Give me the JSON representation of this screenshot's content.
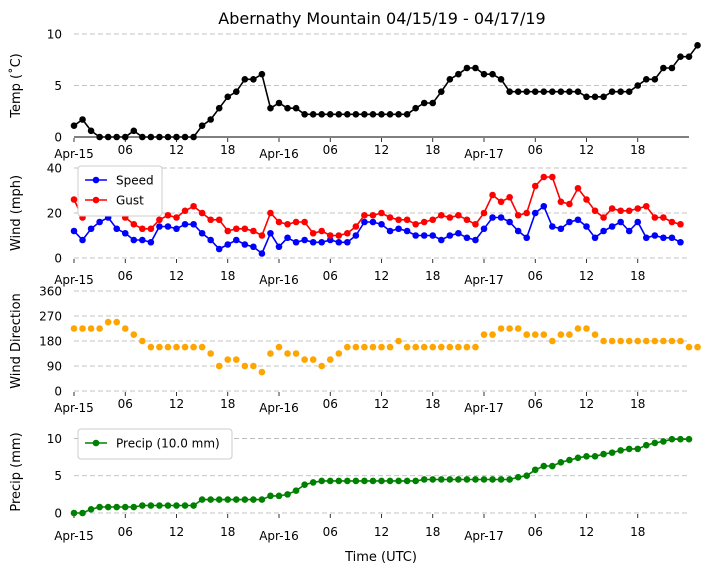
{
  "title": "Abernathy Mountain 04/15/19 - 04/17/19",
  "xlabel": "Time (UTC)",
  "x_ticks": [
    "Apr-15",
    "06",
    "12",
    "18",
    "Apr-16",
    "06",
    "12",
    "18",
    "Apr-17",
    "06",
    "12",
    "18"
  ],
  "colors": {
    "temp": "#000000",
    "speed": "#0000ff",
    "gust": "#ff0000",
    "dir": "#ffa500",
    "precip": "#008000",
    "grid": "#b0b0b0"
  },
  "chart_data": [
    {
      "type": "line",
      "ylabel": "Temp (˚C)",
      "ylim": [
        0,
        10
      ],
      "yticks": [
        0,
        5,
        10
      ],
      "grid": "horizontal dashed",
      "series": [
        {
          "values": [
            1.1,
            1.7,
            0.6,
            0,
            0,
            0,
            0,
            0.6,
            0,
            0,
            0,
            0,
            0,
            0,
            0,
            1.1,
            1.7,
            2.8,
            3.9,
            4.4,
            5.6,
            5.6,
            6.1,
            2.8,
            3.3,
            2.8,
            2.8,
            2.2,
            2.2,
            2.2,
            2.2,
            2.2,
            2.2,
            2.2,
            2.2,
            2.2,
            2.2,
            2.2,
            2.2,
            2.2,
            2.8,
            3.3,
            3.3,
            4.4,
            5.6,
            6.1,
            6.7,
            6.7,
            6.1,
            6.1,
            5.6,
            4.4,
            4.4,
            4.4,
            4.4,
            4.4,
            4.4,
            4.4,
            4.4,
            4.4,
            3.9,
            3.9,
            3.9,
            4.4,
            4.4,
            4.4,
            5,
            5.6,
            5.6,
            6.7,
            6.7,
            7.8,
            7.8,
            8.9
          ]
        }
      ]
    },
    {
      "type": "line",
      "ylabel": "Wind (mph)",
      "ylim": [
        0,
        40
      ],
      "yticks": [
        0,
        20,
        40
      ],
      "legend": "top-left",
      "series": [
        {
          "name": "Speed",
          "values": [
            12,
            8,
            13,
            16,
            18,
            13,
            11,
            8,
            8,
            7,
            14,
            14,
            13,
            15,
            15,
            11,
            8,
            4,
            6,
            8,
            6,
            5,
            2,
            11,
            5,
            9,
            7,
            8,
            7,
            7,
            8,
            7,
            7,
            10,
            16,
            16,
            15,
            12,
            13,
            12,
            10,
            10,
            10,
            8,
            10,
            11,
            9,
            8,
            13,
            18,
            18,
            16,
            12,
            9,
            20,
            23,
            14,
            13,
            16,
            17,
            14,
            9,
            12,
            14,
            16,
            12,
            16,
            9,
            10,
            9,
            9,
            7
          ]
        },
        {
          "name": "Gust",
          "values": [
            26,
            18,
            23,
            22,
            24,
            23,
            18,
            15,
            13,
            13,
            17,
            19,
            18,
            21,
            23,
            20,
            17,
            17,
            12,
            13,
            13,
            12,
            10,
            20,
            16,
            15,
            16,
            16,
            11,
            12,
            10,
            10,
            11,
            14,
            19,
            19,
            20,
            18,
            17,
            17,
            15,
            16,
            17,
            19,
            18,
            19,
            17,
            15,
            20,
            28,
            25,
            27,
            19,
            20,
            32,
            36,
            36,
            25,
            24,
            31,
            26,
            21,
            18,
            22,
            21,
            21,
            22,
            23,
            18,
            18,
            16,
            15
          ]
        }
      ]
    },
    {
      "type": "scatter",
      "ylabel": "Wind Direction",
      "ylim": [
        0,
        360
      ],
      "yticks": [
        0,
        90,
        180,
        270,
        360
      ],
      "series": [
        {
          "values": [
            225,
            225,
            225,
            225,
            248,
            248,
            225,
            203,
            180,
            158,
            158,
            158,
            158,
            158,
            158,
            158,
            135,
            90,
            113,
            113,
            90,
            90,
            68,
            135,
            158,
            135,
            135,
            113,
            113,
            90,
            113,
            135,
            158,
            158,
            158,
            158,
            158,
            158,
            180,
            158,
            158,
            158,
            158,
            158,
            158,
            158,
            158,
            158,
            203,
            203,
            225,
            225,
            225,
            203,
            203,
            203,
            180,
            203,
            203,
            225,
            225,
            203,
            180,
            180,
            180,
            180,
            180,
            180,
            180,
            180,
            180,
            180,
            158,
            158
          ]
        }
      ]
    },
    {
      "type": "line",
      "ylabel": "Precip (mm)",
      "ylim": [
        0,
        11
      ],
      "yticks": [
        0,
        5,
        10
      ],
      "legend": "top-left",
      "series": [
        {
          "name": "Precip (10.0 mm)",
          "values": [
            0,
            0,
            0.5,
            0.8,
            0.8,
            0.8,
            0.8,
            0.8,
            1,
            1,
            1,
            1,
            1,
            1,
            1,
            1.8,
            1.8,
            1.8,
            1.8,
            1.8,
            1.8,
            1.8,
            1.8,
            2.3,
            2.3,
            2.5,
            3,
            3.8,
            4.1,
            4.3,
            4.3,
            4.3,
            4.3,
            4.3,
            4.3,
            4.3,
            4.3,
            4.3,
            4.3,
            4.3,
            4.3,
            4.5,
            4.5,
            4.5,
            4.5,
            4.5,
            4.5,
            4.5,
            4.5,
            4.5,
            4.5,
            4.5,
            4.8,
            5,
            5.8,
            6.3,
            6.3,
            6.8,
            7.1,
            7.4,
            7.6,
            7.6,
            7.9,
            8.1,
            8.4,
            8.6,
            8.6,
            9.1,
            9.4,
            9.6,
            9.9,
            9.9,
            9.9
          ]
        }
      ]
    }
  ]
}
